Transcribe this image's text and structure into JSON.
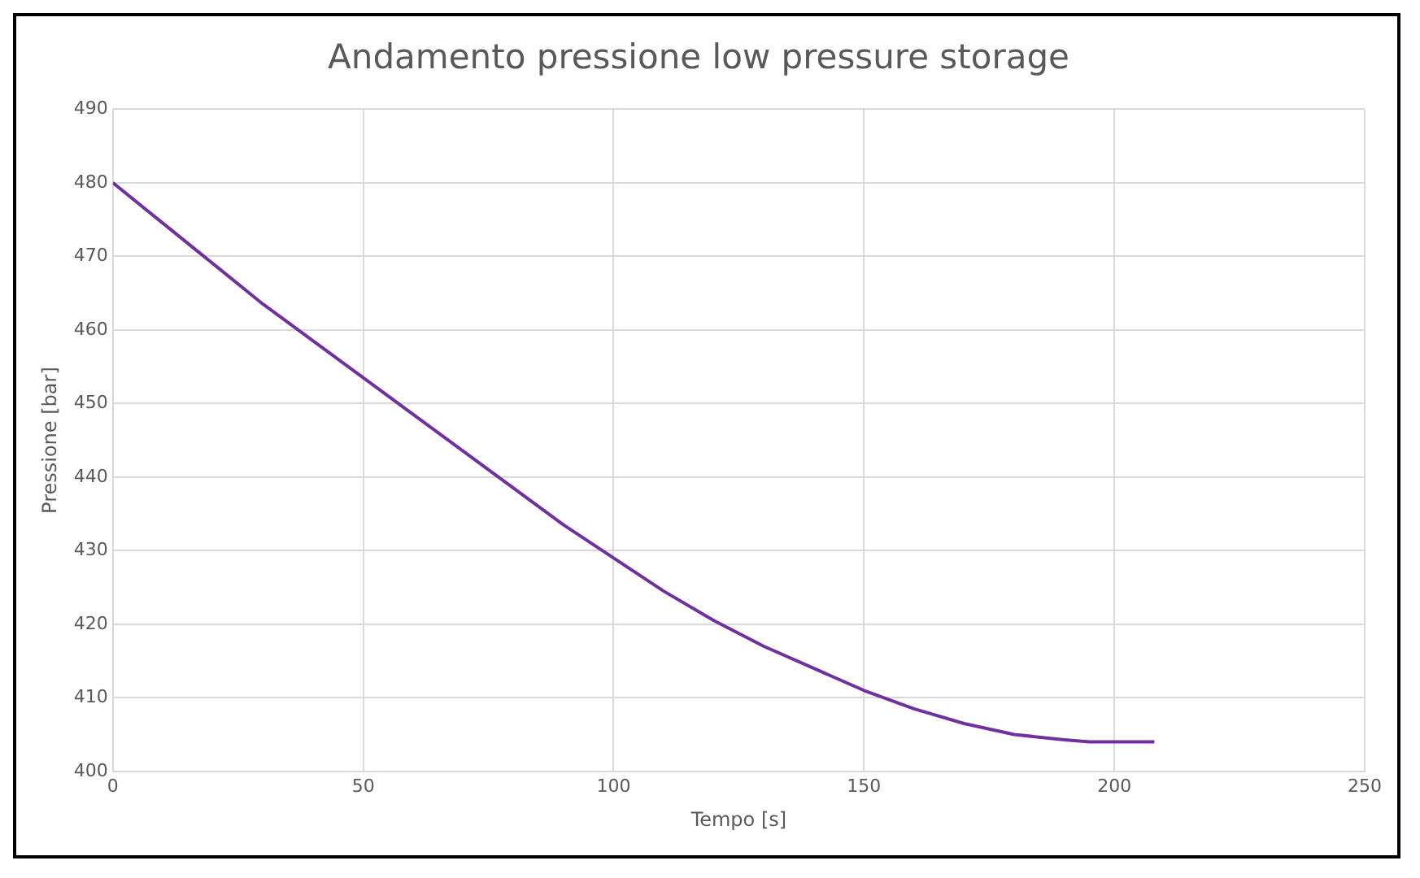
{
  "chart_data": {
    "type": "line",
    "title": "Andamento pressione low pressure storage",
    "xlabel": "Tempo [s]",
    "ylabel": "Pressione [bar]",
    "x": [
      0,
      10,
      20,
      30,
      40,
      50,
      60,
      70,
      80,
      90,
      100,
      110,
      120,
      130,
      140,
      150,
      160,
      170,
      180,
      190,
      195,
      208
    ],
    "series": [
      {
        "color": "#7030a0",
        "values": [
          480,
          474.5,
          469,
          463.5,
          458.5,
          453.5,
          448.5,
          443.5,
          438.5,
          433.5,
          429,
          424.5,
          420.5,
          417,
          414,
          411,
          408.5,
          406.5,
          405,
          404.3,
          404,
          404
        ]
      }
    ],
    "xlim": [
      0,
      250
    ],
    "xticks": [
      0,
      50,
      100,
      150,
      200,
      250
    ],
    "ylim": [
      400,
      490
    ],
    "yticks": [
      400,
      410,
      420,
      430,
      440,
      450,
      460,
      470,
      480,
      490
    ],
    "grid": true,
    "legend": false,
    "marker": "none",
    "line_style": "solid"
  }
}
